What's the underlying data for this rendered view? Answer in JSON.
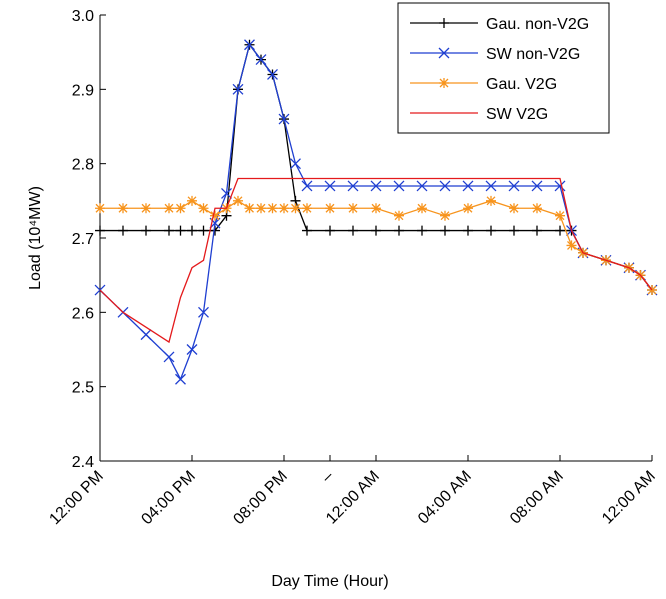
{
  "chart_data": {
    "type": "line",
    "x_label": "Day Time (Hour)",
    "y_label": "Load (10⁴MW)",
    "x": [
      0,
      1,
      2,
      3,
      3.5,
      4,
      4.5,
      5,
      5.5,
      6,
      6.5,
      7,
      7.5,
      8,
      8.5,
      9,
      10,
      11,
      12,
      13,
      14,
      15,
      16,
      17,
      18,
      19,
      20,
      20.5,
      21,
      22,
      23,
      23.5,
      24
    ],
    "xlim": [
      0,
      24
    ],
    "xticks": [
      {
        "value": 0,
        "label": "12:00 PM"
      },
      {
        "value": 4,
        "label": "04:00 PM"
      },
      {
        "value": 8,
        "label": "08:00 PM"
      },
      {
        "value": 10,
        "label": "–"
      },
      {
        "value": 12,
        "label": "12:00 AM"
      },
      {
        "value": 16,
        "label": "04:00 AM"
      },
      {
        "value": 20,
        "label": "08:00 AM"
      },
      {
        "value": 24,
        "label": "12:00 AM"
      }
    ],
    "ylim": [
      2.4,
      3.0
    ],
    "yticks": [
      2.4,
      2.5,
      2.6,
      2.7,
      2.8,
      2.9,
      {
        "value": 3.0,
        "label": "3.0"
      }
    ],
    "legend": "top-right",
    "series": [
      {
        "name": "Gau. non-V2G",
        "color": "#000000",
        "marker": "plus",
        "values": [
          2.71,
          2.71,
          2.71,
          2.71,
          2.71,
          2.71,
          2.71,
          2.71,
          2.73,
          2.9,
          2.96,
          2.94,
          2.92,
          2.86,
          2.75,
          2.71,
          2.71,
          2.71,
          2.71,
          2.71,
          2.71,
          2.71,
          2.71,
          2.71,
          2.71,
          2.71,
          2.71,
          2.71,
          2.68,
          2.67,
          2.66,
          2.65,
          2.63
        ]
      },
      {
        "name": "SW non-V2G",
        "color": "#1f3fd1",
        "marker": "x",
        "values": [
          2.63,
          2.6,
          2.57,
          2.54,
          2.51,
          2.55,
          2.6,
          2.72,
          2.76,
          2.9,
          2.96,
          2.94,
          2.92,
          2.86,
          2.8,
          2.77,
          2.77,
          2.77,
          2.77,
          2.77,
          2.77,
          2.77,
          2.77,
          2.77,
          2.77,
          2.77,
          2.77,
          2.71,
          2.68,
          2.67,
          2.66,
          2.65,
          2.63
        ]
      },
      {
        "name": "Gau. V2G",
        "color": "#f7941d",
        "marker": "star",
        "values": [
          2.74,
          2.74,
          2.74,
          2.74,
          2.74,
          2.75,
          2.74,
          2.73,
          2.74,
          2.75,
          2.74,
          2.74,
          2.74,
          2.74,
          2.74,
          2.74,
          2.74,
          2.74,
          2.74,
          2.73,
          2.74,
          2.73,
          2.74,
          2.75,
          2.74,
          2.74,
          2.73,
          2.69,
          2.68,
          2.67,
          2.66,
          2.65,
          2.63
        ]
      },
      {
        "name": "SW V2G",
        "color": "#e41a1c",
        "marker": "none",
        "values": [
          2.63,
          2.6,
          2.58,
          2.56,
          2.62,
          2.66,
          2.67,
          2.74,
          2.74,
          2.78,
          2.78,
          2.78,
          2.78,
          2.78,
          2.78,
          2.78,
          2.78,
          2.78,
          2.78,
          2.78,
          2.78,
          2.78,
          2.78,
          2.78,
          2.78,
          2.78,
          2.78,
          2.71,
          2.68,
          2.67,
          2.66,
          2.65,
          2.63
        ]
      }
    ]
  }
}
